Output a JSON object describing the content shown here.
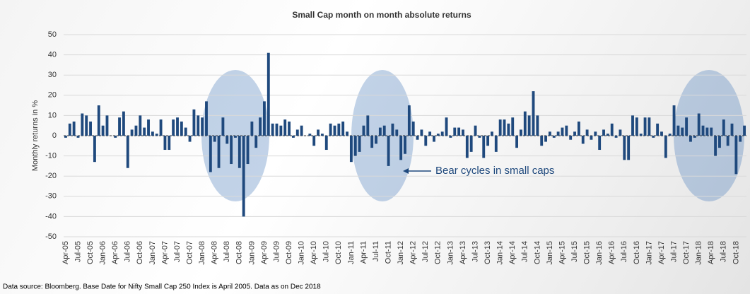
{
  "chart_data": {
    "type": "bar",
    "title": "Small Cap month on month absolute returns",
    "y_label": "Monthly returns in %",
    "annotation": "Bear cycles in small caps",
    "source": "Data source: Bloomberg. Base Date for Nifty Small Cap 250 Index is April 2005. Data as on Dec 2018",
    "color": "#1f497d",
    "grid": true,
    "ylim": [
      -50,
      50
    ],
    "yticks": [
      -50,
      -40,
      -30,
      -20,
      -10,
      0,
      10,
      20,
      30,
      40,
      50
    ],
    "categories": [
      "Apr-05",
      null,
      null,
      "Jul-05",
      null,
      null,
      "Oct-05",
      null,
      null,
      "Jan-06",
      null,
      null,
      "Apr-06",
      null,
      null,
      "Jul-06",
      null,
      null,
      "Oct-06",
      null,
      null,
      "Jan-07",
      null,
      null,
      "Apr-07",
      null,
      null,
      "Jul-07",
      null,
      null,
      "Oct-07",
      null,
      null,
      "Jan-08",
      null,
      null,
      "Apr-08",
      null,
      null,
      "Jul-08",
      null,
      null,
      "Oct-08",
      null,
      null,
      "Jan-09",
      null,
      null,
      "Apr-09",
      null,
      null,
      "Jul-09",
      null,
      null,
      "Oct-09",
      null,
      null,
      "Jan-10",
      null,
      null,
      "Apr-10",
      null,
      null,
      "Jul-10",
      null,
      null,
      "Oct-10",
      null,
      null,
      "Jan-11",
      null,
      null,
      "Apr-11",
      null,
      null,
      "Jul-11",
      null,
      null,
      "Oct-11",
      null,
      null,
      "Jan-12",
      null,
      null,
      "Apr-12",
      null,
      null,
      "Jul-12",
      null,
      null,
      "Oct-12",
      null,
      null,
      "Jan-13",
      null,
      null,
      "Apr-13",
      null,
      null,
      "Jul-13",
      null,
      null,
      "Oct-13",
      null,
      null,
      "Jan-14",
      null,
      null,
      "Apr-14",
      null,
      null,
      "Jul-14",
      null,
      null,
      "Oct-14",
      null,
      null,
      "Jan-15",
      null,
      null,
      "Apr-15",
      null,
      null,
      "Jul-15",
      null,
      null,
      "Oct-15",
      null,
      null,
      "Jan-16",
      null,
      null,
      "Apr-16",
      null,
      null,
      "Jul-16",
      null,
      null,
      "Oct-16",
      null,
      null,
      "Jan-17",
      null,
      null,
      "Apr-17",
      null,
      null,
      "Jul-17",
      null,
      null,
      "Oct-17",
      null,
      null,
      "Jan-18",
      null,
      null,
      "Apr-18",
      null,
      null,
      "Jul-18",
      null,
      null,
      "Oct-18",
      null,
      null
    ],
    "values": [
      -1,
      6,
      7,
      -1,
      11,
      10,
      7,
      -13,
      15,
      5,
      10,
      0,
      -1,
      9,
      12,
      -16,
      3,
      5,
      10,
      4,
      8,
      2,
      1,
      8,
      -7,
      -7,
      8,
      9,
      7,
      4,
      -3,
      13,
      10,
      9,
      17,
      -18,
      -3,
      -16,
      9,
      -4,
      -14,
      -1,
      -16,
      -40,
      -14,
      7,
      -6,
      9,
      17,
      41,
      6,
      6,
      5,
      8,
      7,
      -1,
      3,
      5,
      0,
      1,
      -5,
      3,
      1,
      -7,
      6,
      5,
      6,
      7,
      2,
      -13,
      -10,
      -8,
      5,
      10,
      -6,
      -4,
      4,
      5,
      -15,
      6,
      3,
      -12,
      -9,
      15,
      7,
      -2,
      3,
      -5,
      2,
      -3,
      1,
      2,
      9,
      -1,
      4,
      4,
      3,
      -11,
      -8,
      5,
      -1,
      -11,
      -5,
      2,
      -8,
      8,
      8,
      6,
      9,
      -6,
      3,
      12,
      10,
      22,
      10,
      -5,
      -3,
      2,
      -1,
      2,
      4,
      5,
      -2,
      2,
      7,
      -4,
      3,
      -2,
      2,
      -7,
      3,
      1,
      6,
      -1,
      3,
      -12,
      -12,
      10,
      9,
      1,
      9,
      9,
      -1,
      6,
      2,
      -11,
      1,
      15,
      5,
      4,
      9,
      -3,
      -1,
      11,
      5,
      4,
      4,
      -10,
      -6,
      8,
      -5,
      6,
      -19,
      -3,
      5
    ]
  }
}
